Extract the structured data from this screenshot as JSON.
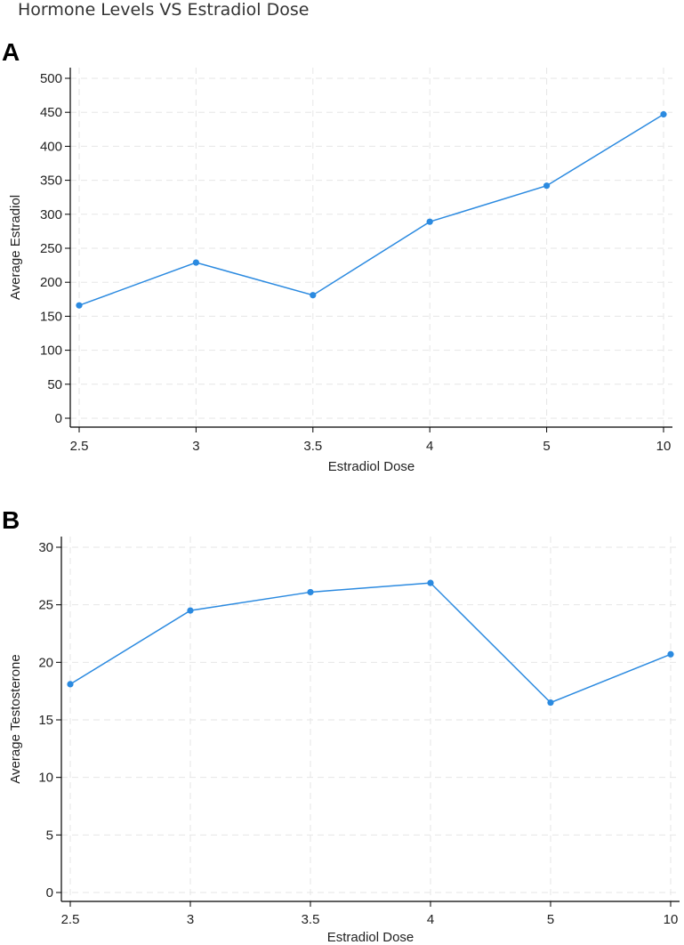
{
  "title": "Hormone Levels VS Estradiol Dose",
  "colors": {
    "series": "#2b8ae0",
    "grid": "#e6e6e6",
    "axis": "#000000"
  },
  "chart_data": [
    {
      "panel": "A",
      "type": "line",
      "xlabel": "Estradiol Dose",
      "ylabel": "Average Estradiol",
      "categories": [
        "2.5",
        "3",
        "3.5",
        "4",
        "5",
        "10"
      ],
      "values": [
        166,
        229,
        181,
        289,
        342,
        447
      ],
      "ylim": [
        0,
        500
      ],
      "yticks": [
        0,
        50,
        100,
        150,
        200,
        250,
        300,
        350,
        400,
        450,
        500
      ],
      "grid": true
    },
    {
      "panel": "B",
      "type": "line",
      "xlabel": "Estradiol Dose",
      "ylabel": "Average Testosterone",
      "categories": [
        "2.5",
        "3",
        "3.5",
        "4",
        "5",
        "10"
      ],
      "values": [
        18.1,
        24.5,
        26.1,
        26.9,
        16.5,
        20.7
      ],
      "ylim": [
        0,
        30
      ],
      "yticks": [
        0,
        5,
        10,
        15,
        20,
        25,
        30
      ],
      "grid": true
    }
  ]
}
